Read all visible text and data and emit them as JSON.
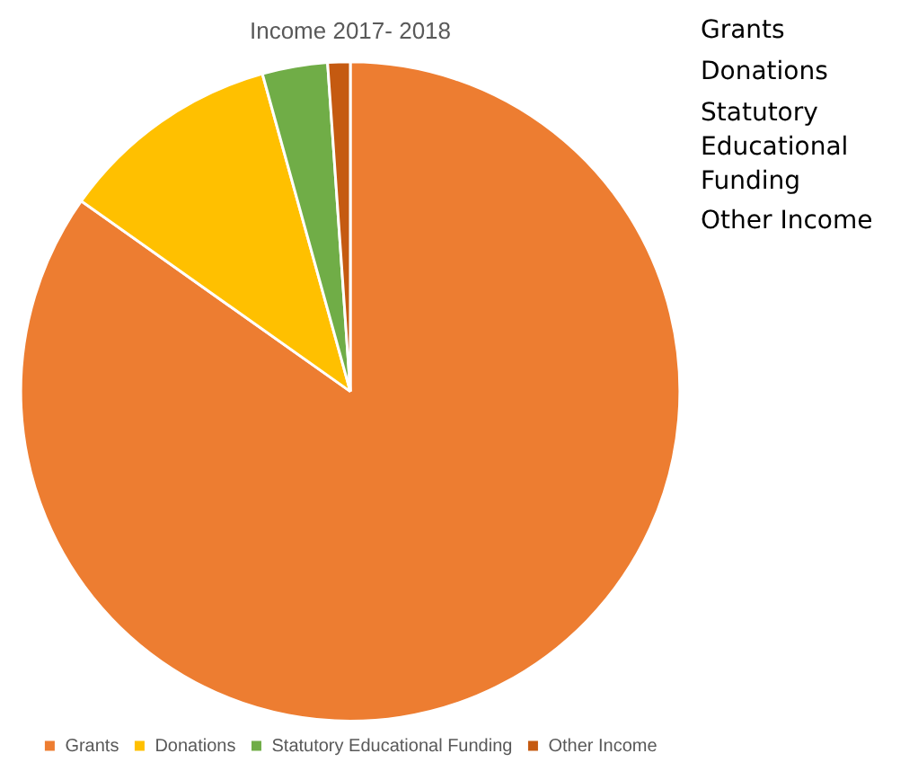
{
  "chart_data": {
    "type": "pie",
    "title": "Income 2017- 2018",
    "categories": [
      "Grants",
      "Donations",
      "Statutory Educational Funding",
      "Other Income"
    ],
    "values": [
      84.8,
      10.9,
      3.2,
      1.1
    ],
    "colors": [
      "#ed7d31",
      "#ffc000",
      "#70ad47",
      "#c55a11"
    ],
    "legend": "bottom",
    "annotations": [
      "Grants",
      "Donations",
      "Statutory Educational Funding",
      "Other Income"
    ]
  }
}
